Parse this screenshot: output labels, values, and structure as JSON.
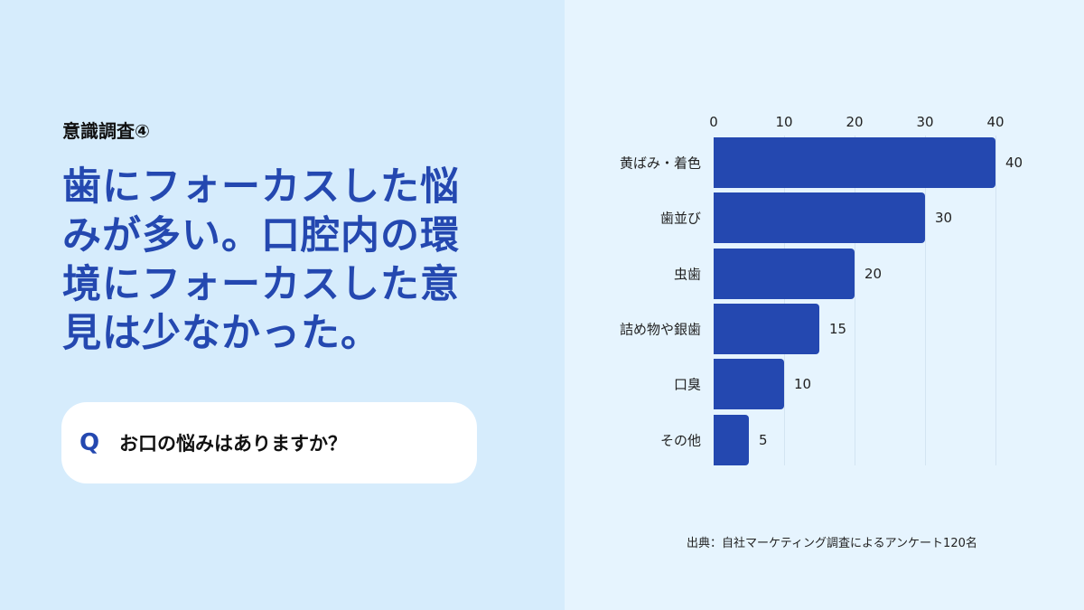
{
  "eyebrow": "意識調査④",
  "headline": "歯にフォーカスした悩みが多い。口腔内の環境にフォーカスした意見は少なかった。",
  "question": {
    "marker": "Q",
    "text": "お口の悩みはありますか？"
  },
  "source": "出典：自社マーケティング調査によるアンケート120名",
  "colors": {
    "bar": "#2448b0",
    "left_bg": "#d6ecfc",
    "right_bg": "#e6f4fe"
  },
  "chart_data": {
    "type": "bar",
    "orientation": "horizontal",
    "categories": [
      "黄ばみ・着色",
      "歯並び",
      "虫歯",
      "詰め物や銀歯",
      "口臭",
      "その他"
    ],
    "values": [
      40,
      30,
      20,
      15,
      10,
      5
    ],
    "xlim": [
      0,
      40
    ],
    "xticks": [
      "0",
      "10",
      "20",
      "30",
      "40"
    ],
    "axis_position": "top",
    "grid": true
  }
}
